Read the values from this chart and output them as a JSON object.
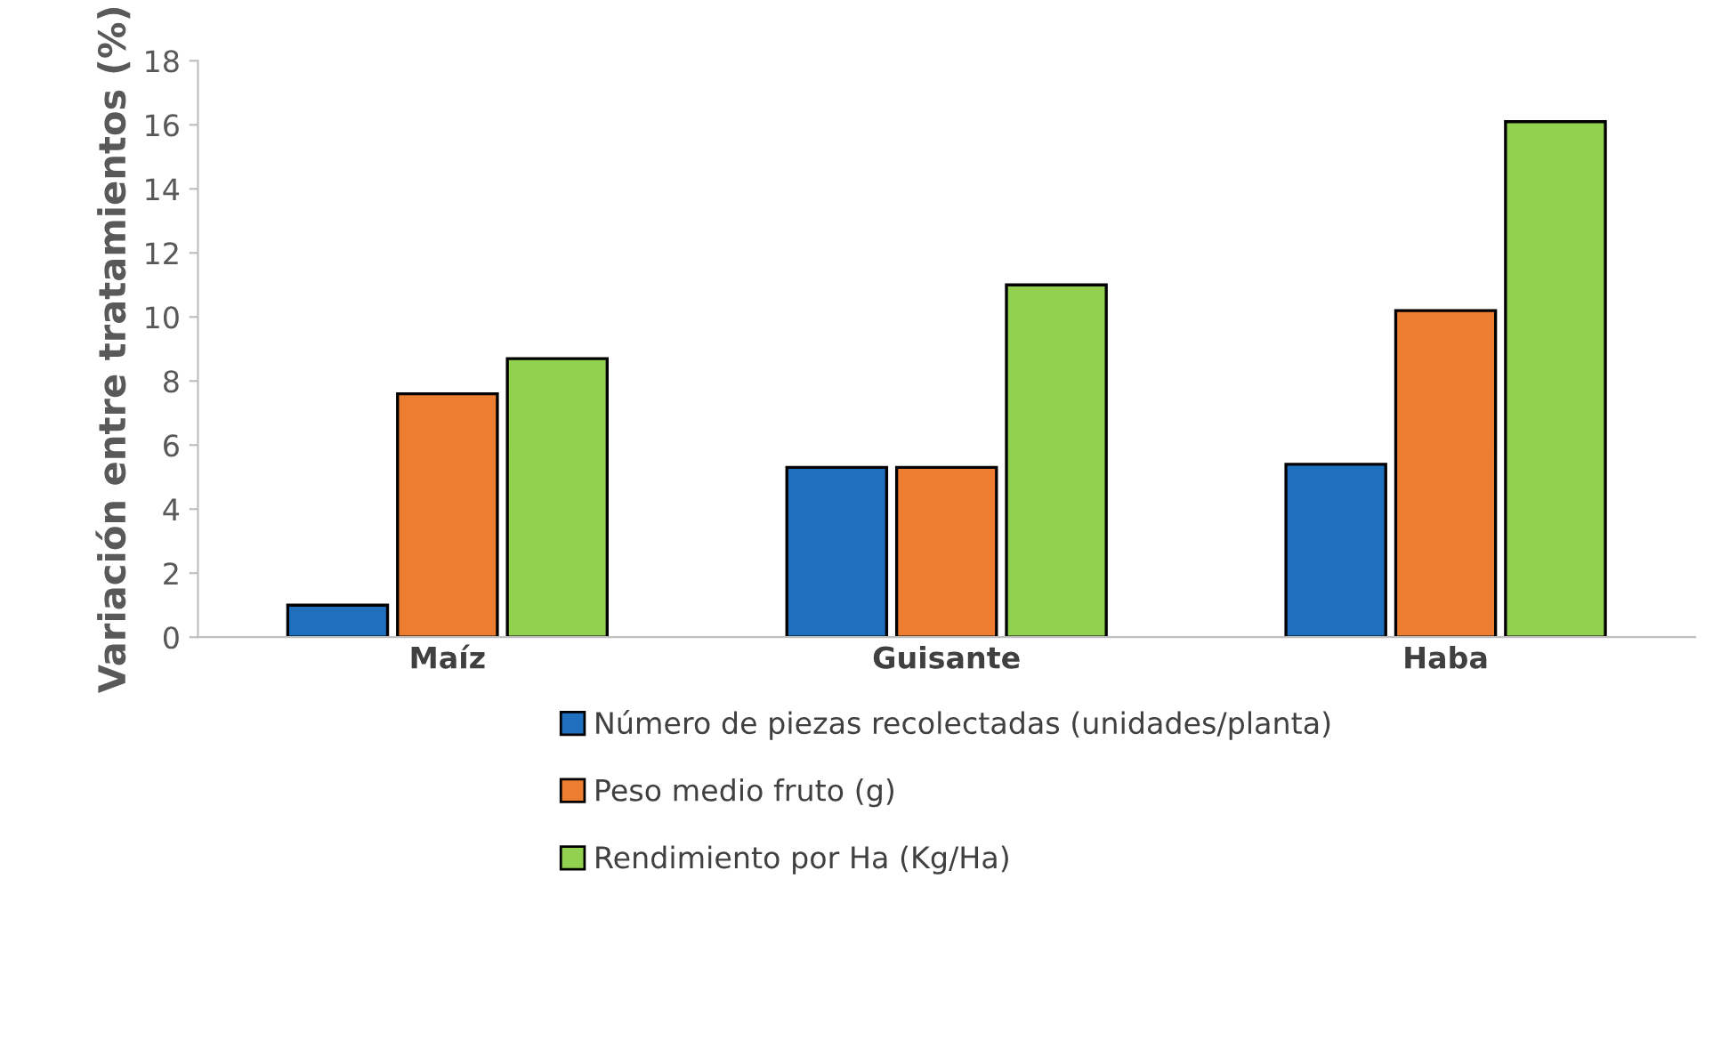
{
  "chart_data": {
    "type": "bar",
    "ylabel": "Variación entre tratamientos (%)",
    "categories": [
      "Maíz",
      "Guisante",
      "Haba"
    ],
    "series": [
      {
        "name": "Número de piezas recolectadas (unidades/planta)",
        "color": "#1f6fbf",
        "values": [
          1.0,
          5.3,
          5.4
        ]
      },
      {
        "name": "Peso medio fruto (g)",
        "color": "#ed7d31",
        "values": [
          7.6,
          5.3,
          10.2
        ]
      },
      {
        "name": "Rendimiento por Ha (Kg/Ha)",
        "color": "#92d050",
        "values": [
          8.7,
          11.0,
          16.1
        ]
      }
    ],
    "ylim": [
      0,
      18
    ],
    "yticks": [
      0,
      2,
      4,
      6,
      8,
      10,
      12,
      14,
      16,
      18
    ],
    "grid": false,
    "legend": "bottom"
  }
}
